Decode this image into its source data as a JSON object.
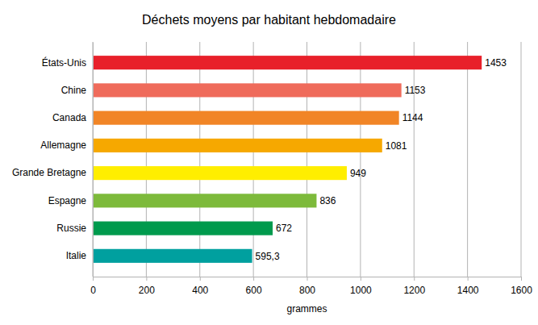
{
  "chart_data": {
    "type": "bar",
    "title": "Déchets moyens par habitant hebdomadaire",
    "orientation": "horizontal",
    "categories": [
      "États-Unis",
      "Chine",
      "Canada",
      "Allemagne",
      "Grande Bretagne",
      "Espagne",
      "Russie",
      "Italie"
    ],
    "values": [
      1453,
      1153,
      1144,
      1081,
      949,
      836,
      672,
      595.3
    ],
    "value_labels": [
      "1453",
      "1153",
      "1144",
      "1081",
      "949",
      "836",
      "672",
      "595,3"
    ],
    "colors": [
      "#e8202a",
      "#ef6b5b",
      "#f18526",
      "#f6a800",
      "#ffee00",
      "#7dba3b",
      "#009a4d",
      "#00a09f"
    ],
    "xlabel": "grammes",
    "xlim": [
      0,
      1600
    ],
    "xticks": [
      0,
      200,
      400,
      600,
      800,
      1000,
      1200,
      1400,
      1600
    ],
    "grid": true,
    "data_labels": true
  }
}
